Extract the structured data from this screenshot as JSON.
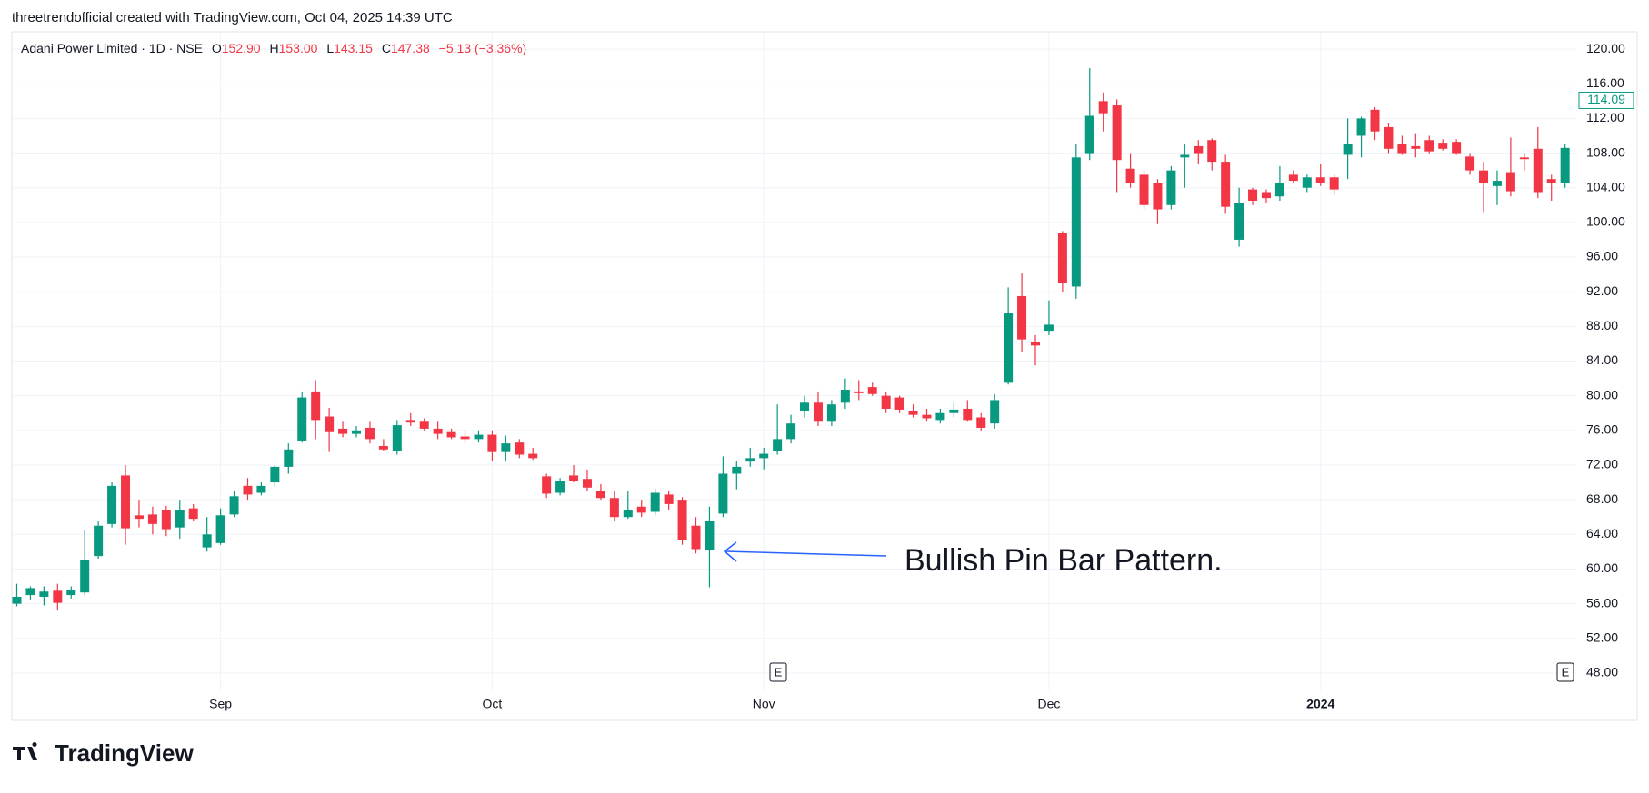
{
  "header": {
    "attribution": "threetrendofficial created with TradingView.com, Oct 04, 2025 14:39 UTC",
    "symbol": "Adani Power Limited · 1D · NSE",
    "ohlc": [
      {
        "key": "O",
        "value": "152.90"
      },
      {
        "key": "H",
        "value": "153.00"
      },
      {
        "key": "L",
        "value": "143.15"
      },
      {
        "key": "C",
        "value": "147.38"
      }
    ],
    "change": "−5.13 (−3.36%)"
  },
  "logo": "TradingView",
  "annotation": "Bullish Pin Bar Pattern.",
  "earnings_markers": [
    "E",
    "E"
  ],
  "chart_data": {
    "type": "candlestick",
    "up_color": "#089981",
    "down_color": "#f23645",
    "grid": true,
    "categories": [
      null,
      null,
      null,
      null,
      null,
      null,
      null,
      null,
      null,
      null,
      null,
      null,
      null,
      null,
      null,
      "Sep",
      null,
      null,
      null,
      null,
      null,
      null,
      null,
      null,
      null,
      null,
      null,
      null,
      null,
      null,
      null,
      null,
      null,
      null,
      null,
      "Oct",
      null,
      null,
      null,
      null,
      null,
      null,
      null,
      null,
      null,
      null,
      null,
      null,
      null,
      null,
      null,
      null,
      null,
      null,
      null,
      "Nov",
      null,
      null,
      null,
      null,
      null,
      null,
      null,
      null,
      null,
      null,
      null,
      null,
      null,
      null,
      null,
      null,
      null,
      null,
      null,
      null,
      "Dec",
      null,
      null,
      null,
      null,
      null,
      null,
      null,
      null,
      null,
      null,
      null,
      null,
      null,
      null,
      null,
      null,
      null,
      null,
      null,
      "2024",
      null,
      null,
      null,
      null,
      null,
      null,
      null,
      null,
      null,
      null,
      null,
      null,
      null,
      null,
      null,
      null,
      null,
      null
    ],
    "open": [
      56.0,
      57.0,
      56.8,
      57.5,
      57.0,
      57.3,
      61.5,
      65.2,
      70.8,
      66.2,
      66.3,
      66.8,
      64.8,
      67.0,
      62.5,
      63.0,
      66.3,
      69.6,
      68.8,
      70.0,
      71.8,
      74.8,
      80.5,
      77.6,
      76.2,
      75.6,
      76.3,
      74.2,
      73.6,
      77.2,
      77.0,
      76.2,
      75.8,
      75.3,
      75.0,
      75.5,
      73.5,
      74.6,
      73.3,
      70.7,
      68.8,
      70.8,
      70.4,
      69.0,
      68.2,
      66.0,
      67.2,
      66.6,
      68.6,
      68.0,
      65.0,
      62.2,
      66.4,
      71.0,
      72.4,
      72.8,
      73.6,
      75.0,
      78.2,
      79.2,
      77.0,
      79.2,
      80.5,
      81.0,
      80.0,
      79.8,
      78.2,
      77.8,
      77.2,
      78.0,
      78.5,
      77.5,
      76.8,
      81.5,
      91.5,
      86.2,
      87.5,
      98.8,
      92.6,
      108.0,
      114.0,
      113.5,
      106.2,
      105.5,
      104.5,
      102.0,
      107.5,
      108.8,
      109.5,
      107.0,
      98.0,
      103.8,
      103.5,
      103.0,
      105.5,
      104.0,
      105.2,
      105.2,
      107.8,
      110.0,
      113.0,
      111.0,
      109.0,
      108.8,
      109.5,
      109.2,
      109.3,
      107.6,
      106.0,
      104.2,
      105.8,
      107.5,
      108.5,
      105.0,
      104.5
    ],
    "high": [
      58.3,
      58.0,
      58.0,
      58.3,
      58.0,
      64.5,
      65.5,
      70.0,
      72.0,
      68.0,
      67.2,
      67.3,
      68.0,
      67.5,
      66.0,
      67.0,
      69.0,
      70.5,
      70.0,
      72.0,
      74.5,
      80.5,
      81.8,
      78.6,
      77.0,
      76.5,
      77.0,
      75.0,
      77.2,
      78.0,
      77.4,
      77.0,
      76.2,
      76.0,
      76.0,
      76.0,
      75.4,
      75.0,
      74.0,
      71.0,
      70.5,
      72.0,
      71.5,
      69.8,
      69.0,
      69.0,
      68.0,
      69.3,
      69.0,
      68.3,
      66.0,
      67.2,
      73.0,
      72.5,
      74.0,
      74.0,
      79.0,
      77.8,
      80.0,
      80.5,
      79.5,
      82.0,
      81.8,
      81.5,
      80.5,
      80.0,
      79.0,
      78.5,
      78.5,
      79.2,
      79.5,
      78.0,
      80.2,
      92.5,
      94.2,
      87.0,
      91.0,
      99.0,
      109.0,
      117.8,
      115.0,
      114.2,
      108.0,
      106.0,
      105.0,
      106.5,
      109.0,
      109.5,
      109.7,
      107.8,
      104.0,
      104.0,
      103.8,
      106.5,
      106.0,
      105.5,
      106.8,
      105.5,
      112.0,
      112.2,
      113.3,
      111.5,
      110.0,
      110.3,
      110.0,
      109.6,
      109.6,
      108.0,
      107.0,
      106.0,
      109.8,
      108.0,
      111.0,
      105.5,
      109.0
    ],
    "low": [
      55.7,
      56.5,
      55.8,
      55.2,
      56.6,
      57.0,
      61.2,
      64.8,
      62.8,
      64.8,
      64.0,
      63.8,
      63.5,
      65.5,
      62.0,
      62.8,
      66.0,
      68.0,
      68.5,
      69.5,
      71.0,
      74.6,
      75.0,
      73.5,
      75.2,
      75.2,
      74.5,
      73.6,
      73.2,
      76.5,
      76.0,
      75.0,
      75.0,
      74.5,
      74.6,
      72.5,
      72.5,
      72.8,
      72.6,
      68.2,
      68.5,
      70.0,
      69.0,
      68.0,
      65.5,
      65.8,
      66.0,
      66.2,
      66.8,
      62.8,
      61.8,
      57.9,
      66.0,
      69.2,
      71.8,
      71.5,
      73.2,
      74.5,
      77.5,
      76.5,
      76.5,
      78.5,
      79.5,
      80.0,
      78.0,
      78.0,
      77.5,
      77.0,
      76.8,
      77.5,
      77.0,
      76.0,
      76.2,
      81.3,
      85.0,
      83.5,
      87.0,
      92.0,
      91.2,
      107.2,
      110.5,
      103.5,
      104.0,
      101.5,
      99.8,
      101.5,
      104.0,
      106.8,
      106.0,
      101.0,
      97.2,
      102.0,
      102.2,
      102.5,
      104.5,
      103.5,
      104.2,
      103.2,
      105.0,
      107.5,
      109.5,
      108.0,
      107.8,
      107.5,
      108.0,
      108.3,
      107.8,
      105.5,
      101.2,
      102.0,
      103.0,
      106.0,
      102.8,
      102.5,
      104.0
    ],
    "close": [
      56.8,
      57.8,
      57.4,
      56.1,
      57.6,
      61.0,
      65.0,
      69.6,
      64.7,
      65.8,
      65.2,
      64.6,
      66.8,
      65.8,
      64.0,
      66.2,
      68.4,
      68.6,
      69.6,
      71.8,
      73.8,
      79.8,
      77.2,
      75.8,
      75.6,
      76.0,
      75.0,
      73.8,
      76.6,
      76.9,
      76.2,
      75.6,
      75.2,
      75.0,
      75.5,
      73.5,
      74.5,
      73.2,
      72.8,
      68.7,
      70.2,
      70.2,
      69.4,
      68.2,
      66.0,
      66.8,
      66.5,
      68.8,
      67.5,
      63.3,
      62.3,
      65.5,
      71.0,
      71.8,
      72.8,
      73.3,
      75.0,
      76.8,
      79.2,
      77.0,
      79.0,
      80.7,
      80.3,
      80.2,
      78.5,
      78.4,
      77.8,
      77.4,
      78.0,
      78.4,
      77.2,
      76.3,
      79.5,
      89.5,
      86.5,
      85.8,
      88.2,
      93.0,
      107.5,
      112.3,
      112.6,
      107.2,
      104.5,
      102.0,
      101.5,
      106.0,
      107.8,
      108.0,
      107.0,
      101.8,
      102.2,
      102.5,
      102.8,
      104.5,
      104.8,
      105.2,
      104.6,
      103.8,
      109.0,
      112.0,
      110.5,
      108.5,
      108.0,
      108.5,
      108.2,
      108.5,
      108.0,
      106.0,
      104.5,
      104.8,
      103.6,
      107.3,
      103.5,
      104.5,
      108.6
    ],
    "last_price": 114.09,
    "ylim": [
      46,
      122
    ],
    "yticks": [
      {
        "value": 48,
        "label": "48.00"
      },
      {
        "value": 52,
        "label": "52.00"
      },
      {
        "value": 56,
        "label": "56.00"
      },
      {
        "value": 60,
        "label": "60.00"
      },
      {
        "value": 64,
        "label": "64.00"
      },
      {
        "value": 68,
        "label": "68.00"
      },
      {
        "value": 72,
        "label": "72.00"
      },
      {
        "value": 76,
        "label": "76.00"
      },
      {
        "value": 80,
        "label": "80.00"
      },
      {
        "value": 84,
        "label": "84.00"
      },
      {
        "value": 88,
        "label": "88.00"
      },
      {
        "value": 92,
        "label": "92.00"
      },
      {
        "value": 96,
        "label": "96.00"
      },
      {
        "value": 100,
        "label": "100.00"
      },
      {
        "value": 104,
        "label": "104.00"
      },
      {
        "value": 108,
        "label": "108.00"
      },
      {
        "value": 112,
        "label": "112.00"
      },
      {
        "value": 116,
        "label": "116.00"
      },
      {
        "value": 120,
        "label": "120.00"
      }
    ]
  }
}
